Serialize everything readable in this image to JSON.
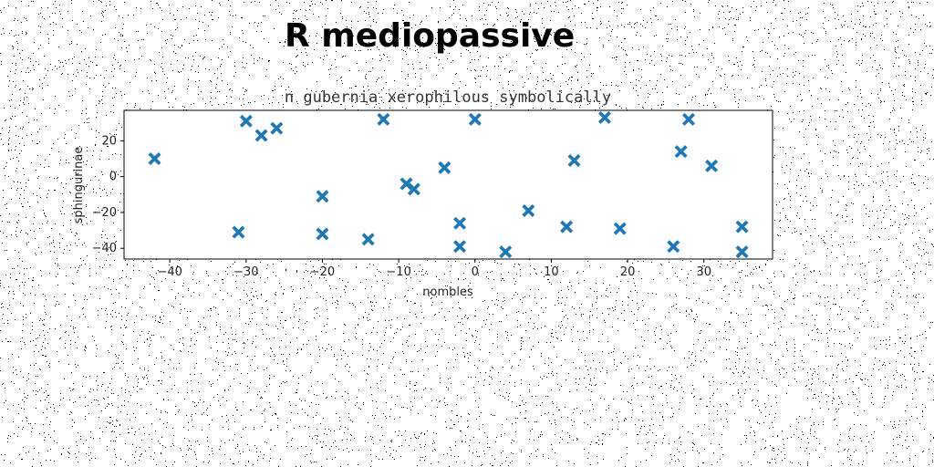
{
  "heading": "R mediopassive",
  "colors": {
    "marker": "#1f77b4",
    "axis": "#000000",
    "noise": "#000000",
    "background": "#ffffff"
  },
  "chart_data": {
    "type": "scatter",
    "title": "n gubernia xerophilous symbolically",
    "xlabel": "nombles",
    "ylabel": "sphingurinae",
    "xlim": [
      -46,
      39
    ],
    "ylim": [
      -46,
      37
    ],
    "xticks": [
      -40,
      -30,
      -20,
      -10,
      0,
      10,
      20,
      30
    ],
    "yticks": [
      -40,
      -20,
      0,
      20
    ],
    "marker": "X",
    "grid": false,
    "series": [
      {
        "points": [
          {
            "x": -42,
            "y": 10
          },
          {
            "x": -31,
            "y": -31
          },
          {
            "x": -30,
            "y": 31
          },
          {
            "x": -28,
            "y": 23
          },
          {
            "x": -26,
            "y": 27
          },
          {
            "x": -20,
            "y": -11
          },
          {
            "x": -20,
            "y": -32
          },
          {
            "x": -14,
            "y": -35
          },
          {
            "x": -12,
            "y": 32
          },
          {
            "x": -9,
            "y": -4
          },
          {
            "x": -8,
            "y": -7
          },
          {
            "x": -4,
            "y": 5
          },
          {
            "x": -2,
            "y": -26
          },
          {
            "x": -2,
            "y": -39
          },
          {
            "x": 0,
            "y": 32
          },
          {
            "x": 4,
            "y": -42
          },
          {
            "x": 7,
            "y": -19
          },
          {
            "x": 12,
            "y": -28
          },
          {
            "x": 13,
            "y": 9
          },
          {
            "x": 17,
            "y": 33
          },
          {
            "x": 19,
            "y": -29
          },
          {
            "x": 26,
            "y": -39
          },
          {
            "x": 27,
            "y": 14
          },
          {
            "x": 28,
            "y": 32
          },
          {
            "x": 31,
            "y": 6
          },
          {
            "x": 35,
            "y": -28
          },
          {
            "x": 35,
            "y": -42
          }
        ]
      }
    ]
  }
}
